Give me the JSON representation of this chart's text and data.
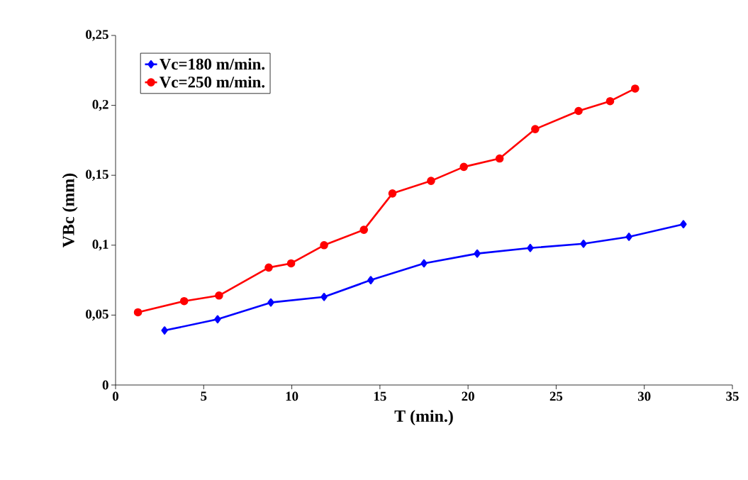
{
  "chart_data": {
    "type": "line",
    "xlabel": "T (min.)",
    "ylabel": "VBc (mm)",
    "xlim": [
      0,
      35
    ],
    "xticks": [
      0,
      5,
      10,
      15,
      20,
      25,
      30,
      35
    ],
    "ylim": [
      0,
      0.25
    ],
    "yticks": [
      0,
      {
        "value": 0.05,
        "label": "0,05"
      },
      {
        "value": 0.1,
        "label": "0,1"
      },
      {
        "value": 0.15,
        "label": "0,15"
      },
      {
        "value": 0.2,
        "label": "0,2"
      },
      {
        "value": 0.25,
        "label": "0,25"
      }
    ],
    "grid": false,
    "legend": "top left",
    "line_style": "solid",
    "series": [
      {
        "name": "Vc=180 m/min.",
        "color": "#0000ff",
        "marker": "diamond",
        "x": [
          2.78,
          5.79,
          8.81,
          11.83,
          14.48,
          17.5,
          20.52,
          23.53,
          26.55,
          29.13,
          32.22
        ],
        "values": [
          0.039,
          0.047,
          0.059,
          0.063,
          0.075,
          0.087,
          0.094,
          0.098,
          0.101,
          0.106,
          0.115
        ]
      },
      {
        "name": "Vc=250 m/min.",
        "color": "#ff0000",
        "marker": "circle",
        "x": [
          1.27,
          3.89,
          5.87,
          8.69,
          9.96,
          11.83,
          14.09,
          15.71,
          17.9,
          19.76,
          21.79,
          23.81,
          26.27,
          28.06,
          29.48
        ],
        "values": [
          0.052,
          0.06,
          0.064,
          0.084,
          0.087,
          0.1,
          0.111,
          0.137,
          0.146,
          0.156,
          0.162,
          0.183,
          0.196,
          0.203,
          0.212
        ]
      }
    ]
  }
}
